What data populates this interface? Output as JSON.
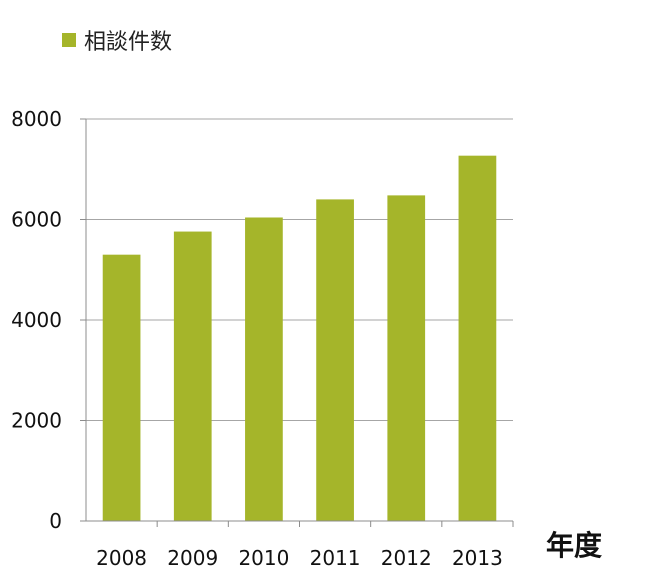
{
  "chart_data": {
    "type": "bar",
    "categories": [
      "2008",
      "2009",
      "2010",
      "2011",
      "2012",
      "2013"
    ],
    "series": [
      {
        "name": "相談件数",
        "values": [
          5300,
          5760,
          6040,
          6400,
          6480,
          7270
        ]
      }
    ],
    "title": "",
    "xlabel": "年度",
    "ylabel": "",
    "ylim": [
      0,
      8000
    ],
    "yticks": [
      "0",
      "2000",
      "4000",
      "6000",
      "8000"
    ],
    "grid": true,
    "legend_position": "top-left",
    "colors": {
      "bar": "#a5b52a",
      "grid": "#a6a6a6",
      "axis": "#8c8c8c",
      "text": "#111111"
    }
  }
}
